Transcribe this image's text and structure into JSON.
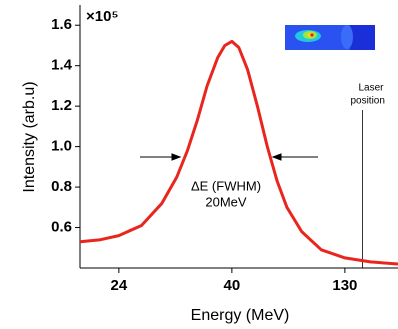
{
  "chart_data": {
    "type": "line",
    "x_label": "Energy (MeV)",
    "y_label": "Intensity (arb.u)",
    "y_multiplier": "×10⁵",
    "x": [
      18.5,
      21.4,
      24,
      27.2,
      30.1,
      32.2,
      33.7,
      35.1,
      36.5,
      38.0,
      39.0,
      40,
      45.5,
      52.5,
      60.3,
      68.2,
      76.0,
      83.8,
      95.6,
      111.2,
      130,
      150.3,
      172.3
    ],
    "series": [
      {
        "color": "#e8261e",
        "values": [
          0.53,
          0.54,
          0.56,
          0.61,
          0.72,
          0.85,
          0.98,
          1.13,
          1.3,
          1.44,
          1.5,
          1.52,
          1.49,
          1.38,
          1.2,
          1.0,
          0.83,
          0.7,
          0.58,
          0.49,
          0.45,
          0.43,
          0.42
        ]
      }
    ],
    "xlim": [
      18.5,
      172.3
    ],
    "xticks": [
      24,
      40,
      130
    ],
    "ylim": [
      0.4,
      1.7
    ],
    "yticks": [
      0.6,
      0.8,
      {
        "value": 1,
        "label": "1.0"
      },
      1.2,
      1.4,
      1.6
    ],
    "fwhm_label": [
      "ΔE (FWHM)",
      "20MeV"
    ],
    "laser_label": [
      "Laser",
      "position"
    ],
    "laser_x": 144
  }
}
